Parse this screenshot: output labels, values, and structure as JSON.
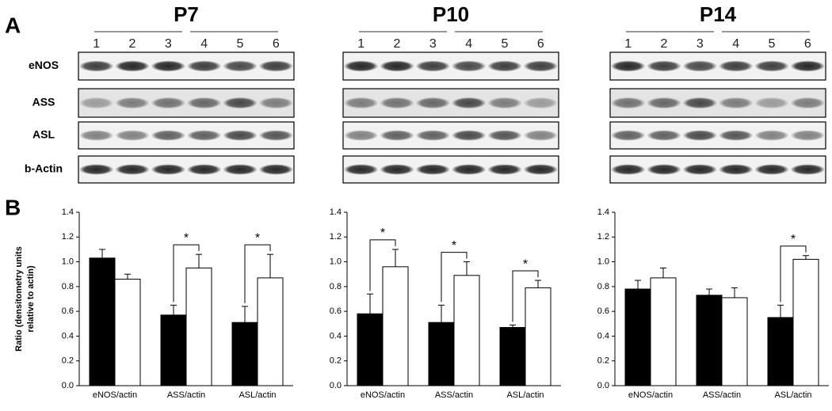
{
  "panel_labels": [
    "A",
    "B"
  ],
  "proteins": [
    "eNOS",
    "ASS",
    "ASL",
    "b-Actin"
  ],
  "blots": [
    {
      "title": "P7",
      "lanes": [
        "1",
        "2",
        "3",
        "4",
        "5",
        "6"
      ]
    },
    {
      "title": "P10",
      "lanes": [
        "1",
        "2",
        "3",
        "4",
        "5",
        "6"
      ]
    },
    {
      "title": "P14",
      "lanes": [
        "1",
        "2",
        "3",
        "4",
        "5",
        "6"
      ]
    }
  ],
  "chart_data": [
    {
      "type": "bar",
      "ylabel": [
        "Ratio (densitometry units",
        "relative to actin)"
      ],
      "categories": [
        "eNOS/actin",
        "ASS/actin",
        "ASL/actin"
      ],
      "series": [
        {
          "color": "#000000",
          "values": [
            1.03,
            0.57,
            0.51
          ],
          "errors": [
            0.07,
            0.08,
            0.13
          ]
        },
        {
          "color": "#ffffff",
          "values": [
            0.86,
            0.95,
            0.87
          ],
          "errors": [
            0.04,
            0.11,
            0.19
          ]
        }
      ],
      "ylim": [
        0,
        1.4
      ],
      "yticks": [
        {
          "value": 0,
          "label": "0.0"
        },
        0.2,
        0.4,
        0.6,
        0.8,
        {
          "value": 1,
          "label": "1.0"
        },
        1.2,
        1.4
      ],
      "annotations": [
        {
          "text": "*",
          "category": "ASS/actin"
        },
        {
          "text": "*",
          "category": "ASL/actin"
        }
      ]
    },
    {
      "type": "bar",
      "categories": [
        "eNOS/actin",
        "ASS/actin",
        "ASL/actin"
      ],
      "series": [
        {
          "color": "#000000",
          "values": [
            0.58,
            0.51,
            0.47
          ],
          "errors": [
            0.16,
            0.14,
            0.02
          ]
        },
        {
          "color": "#ffffff",
          "values": [
            0.96,
            0.89,
            0.79
          ],
          "errors": [
            0.14,
            0.11,
            0.06
          ]
        }
      ],
      "ylim": [
        0,
        1.4
      ],
      "yticks": [
        {
          "value": 0,
          "label": "0.0"
        },
        0.2,
        0.4,
        0.6,
        0.8,
        {
          "value": 1,
          "label": "1.0"
        },
        1.2,
        1.4
      ],
      "annotations": [
        {
          "text": "*",
          "category": "eNOS/actin"
        },
        {
          "text": "*",
          "category": "ASS/actin"
        },
        {
          "text": "*",
          "category": "ASL/actin"
        }
      ]
    },
    {
      "type": "bar",
      "categories": [
        "eNOS/actin",
        "ASS/actin",
        "ASL/actin"
      ],
      "series": [
        {
          "color": "#000000",
          "values": [
            0.78,
            0.73,
            0.55
          ],
          "errors": [
            0.07,
            0.05,
            0.1
          ]
        },
        {
          "color": "#ffffff",
          "values": [
            0.87,
            0.71,
            1.02
          ],
          "errors": [
            0.08,
            0.08,
            0.03
          ]
        }
      ],
      "ylim": [
        0,
        1.4
      ],
      "yticks": [
        {
          "value": 0,
          "label": "0.0"
        },
        0.2,
        0.4,
        0.6,
        0.8,
        {
          "value": 1,
          "label": "1.0"
        },
        1.2,
        1.4
      ],
      "annotations": [
        {
          "text": "*",
          "category": "ASL/actin"
        }
      ]
    }
  ]
}
